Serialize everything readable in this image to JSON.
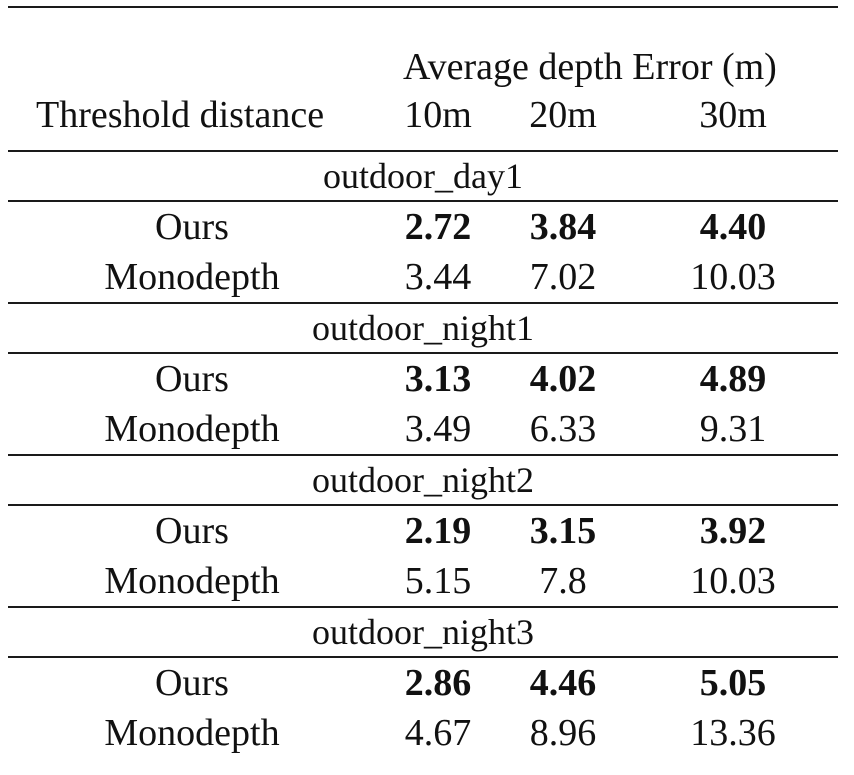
{
  "header": {
    "span_label": "Average depth Error (m)",
    "row_label": "Threshold distance",
    "columns": [
      "10m",
      "20m",
      "30m"
    ]
  },
  "sections": [
    {
      "name": "outdoor_day1",
      "rows": [
        {
          "method": "Ours",
          "values": [
            "2.72",
            "3.84",
            "4.40"
          ],
          "bold": true
        },
        {
          "method": "Monodepth",
          "values": [
            "3.44",
            "7.02",
            "10.03"
          ],
          "bold": false
        }
      ]
    },
    {
      "name": "outdoor_night1",
      "rows": [
        {
          "method": "Ours",
          "values": [
            "3.13",
            "4.02",
            "4.89"
          ],
          "bold": true
        },
        {
          "method": "Monodepth",
          "values": [
            "3.49",
            "6.33",
            "9.31"
          ],
          "bold": false
        }
      ]
    },
    {
      "name": "outdoor_night2",
      "rows": [
        {
          "method": "Ours",
          "values": [
            "2.19",
            "3.15",
            "3.92"
          ],
          "bold": true
        },
        {
          "method": "Monodepth",
          "values": [
            "5.15",
            "7.8",
            "10.03"
          ],
          "bold": false
        }
      ]
    },
    {
      "name": "outdoor_night3",
      "rows": [
        {
          "method": "Ours",
          "values": [
            "2.86",
            "4.46",
            "5.05"
          ],
          "bold": true
        },
        {
          "method": "Monodepth",
          "values": [
            "4.67",
            "8.96",
            "13.36"
          ],
          "bold": false
        }
      ]
    }
  ]
}
